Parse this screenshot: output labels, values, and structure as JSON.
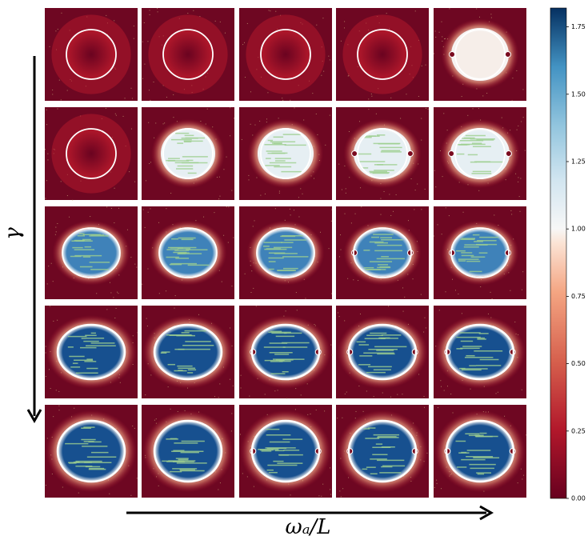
{
  "chart_data": {
    "type": "heatmap-grid",
    "xlabel": "ωₐ/L",
    "ylabel": "γ",
    "colormap": "RdBu",
    "clim": [
      0,
      1.82
    ],
    "cticks": [
      {
        "value": 0,
        "label": "0.00"
      },
      {
        "value": 0.25,
        "label": "0.25"
      },
      {
        "value": 0.5,
        "label": "0.50"
      },
      {
        "value": 0.75,
        "label": "0.75"
      },
      {
        "value": 1,
        "label": "1.00"
      },
      {
        "value": 1.25,
        "label": "1.25"
      },
      {
        "value": 1.5,
        "label": "1.50"
      },
      {
        "value": 1.75,
        "label": "1.75"
      }
    ]
  }
}
